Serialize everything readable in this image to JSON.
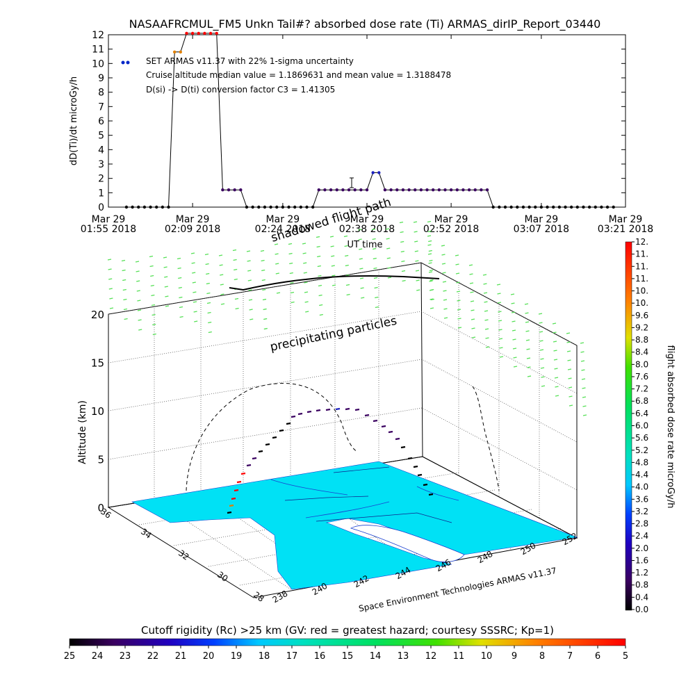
{
  "title": "NASAAFRCMUL_FM5 Unkn Tail#? absorbed dose rate (Ti) ARMAS_dirIP_Report_03440",
  "chart_data": [
    {
      "type": "line",
      "ylabel": "dD(Ti)/dt microGy/h",
      "xlabel": "UT time",
      "ylim": [
        0,
        12
      ],
      "y_ticks": [
        "0",
        "1",
        "2",
        "3",
        "4",
        "5",
        "6",
        "7",
        "8",
        "9",
        "10",
        "11",
        "12"
      ],
      "x_ticks": [
        {
          "l1": "Mar 29",
          "l2": "01:55 2018"
        },
        {
          "l1": "Mar 29",
          "l2": "02:09 2018"
        },
        {
          "l1": "Mar 29",
          "l2": "02:24 2018"
        },
        {
          "l1": "Mar 29",
          "l2": "02:38 2018"
        },
        {
          "l1": "Mar 29",
          "l2": "02:52 2018"
        },
        {
          "l1": "Mar 29",
          "l2": "03:07 2018"
        },
        {
          "l1": "Mar 29",
          "l2": "03:21 2018"
        }
      ],
      "x_minutes_from_first_tick": [
        0,
        14,
        29,
        43,
        57,
        72,
        86
      ],
      "legend": [
        "SET ARMAS v11.37 with 22% 1-sigma uncertainty",
        "Cruise altitude median value = 1.1869631 and mean value = 1.3188478",
        "D(si) -> D(ti) conversion factor C3 = 1.41305"
      ],
      "annotations": [
        "shadowed flight path"
      ],
      "series": [
        {
          "x": [
            3,
            4,
            5,
            6,
            7,
            8,
            9,
            10,
            11,
            12,
            13,
            14,
            15,
            16,
            17,
            18,
            19,
            20,
            21,
            22,
            23,
            24,
            25,
            26,
            27,
            28,
            29,
            30,
            31,
            32,
            33,
            34,
            35,
            36,
            37,
            38,
            39,
            40,
            41,
            42,
            43,
            44,
            45,
            46,
            47,
            48,
            49,
            50,
            51,
            52,
            53,
            54,
            55,
            56,
            57,
            58,
            59,
            60,
            61,
            62,
            63,
            64,
            65,
            66,
            67,
            68,
            69,
            70,
            71,
            72,
            73,
            74,
            75,
            76,
            77,
            78,
            79,
            80,
            81,
            82,
            83,
            84
          ],
          "values": [
            0,
            0,
            0,
            0,
            0,
            0,
            0,
            0,
            10.8,
            10.8,
            12.1,
            12.1,
            12.1,
            12.1,
            12.1,
            12.1,
            1.2,
            1.2,
            1.2,
            1.2,
            0,
            0,
            0,
            0,
            0,
            0,
            0,
            0,
            0,
            0,
            0,
            0,
            1.2,
            1.2,
            1.2,
            1.2,
            1.2,
            1.2,
            1.2,
            1.2,
            1.2,
            2.4,
            2.4,
            1.2,
            1.2,
            1.2,
            1.2,
            1.2,
            1.2,
            1.2,
            1.2,
            1.2,
            1.2,
            1.2,
            1.2,
            1.2,
            1.2,
            1.2,
            1.2,
            1.2,
            1.2,
            0,
            0,
            0,
            0,
            0,
            0,
            0,
            0,
            0,
            0,
            0,
            0,
            0,
            0,
            0,
            0,
            0,
            0,
            0,
            0,
            0
          ]
        }
      ]
    },
    {
      "type": "scatter",
      "zlabel": "Altitude (km)",
      "z_ticks": [
        "0",
        "5",
        "10",
        "15",
        "20"
      ],
      "lat_ticks": [
        "28",
        "30",
        "32",
        "34",
        "36"
      ],
      "lon_ticks": [
        "238",
        "240",
        "242",
        "244",
        "246",
        "248",
        "250",
        "252"
      ],
      "annotations": [
        "precipitating particles"
      ],
      "credit": "Space Environment Technologies ARMAS v11.37"
    }
  ],
  "colorbar_right": {
    "label": "flight absorbed dose rate microGy/h",
    "ticks": [
      "0.0",
      "0.4",
      "0.8",
      "1.2",
      "1.6",
      "2.0",
      "2.4",
      "2.8",
      "3.2",
      "3.6",
      "4.0",
      "4.4",
      "4.8",
      "5.2",
      "5.6",
      "6.0",
      "6.4",
      "6.8",
      "7.2",
      "7.6",
      "8.0",
      "8.4",
      "8.8",
      "9.2",
      "9.6",
      "10.",
      "10.",
      "11.",
      "11.",
      "11.",
      "12."
    ]
  },
  "colorbar_bottom": {
    "label": "Cutoff rigidity (Rc) >25 km (GV: red = greatest hazard; courtesy SSSRC; Kp=1)",
    "ticks": [
      "25",
      "24",
      "23",
      "22",
      "21",
      "20",
      "19",
      "18",
      "17",
      "16",
      "15",
      "14",
      "13",
      "12",
      "11",
      "10",
      "9",
      "8",
      "7",
      "6",
      "5"
    ]
  }
}
